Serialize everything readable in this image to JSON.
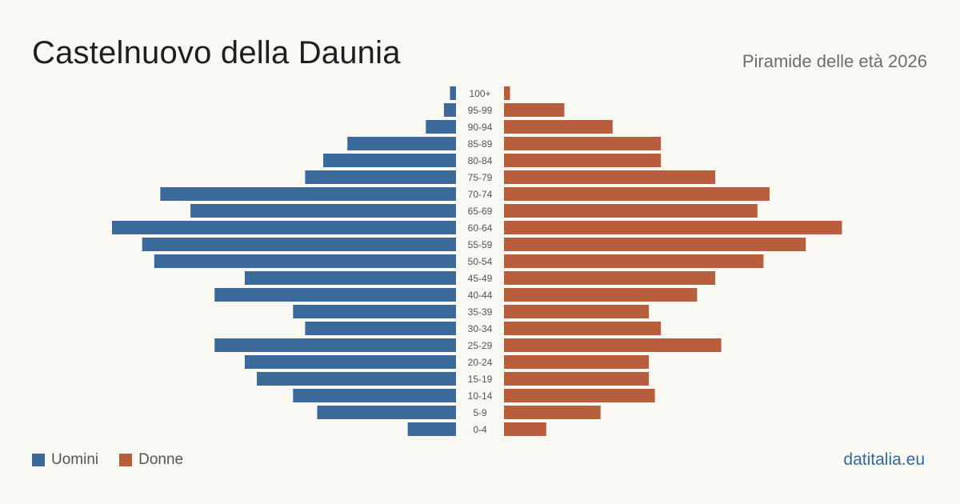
{
  "header": {
    "title": "Castelnuovo  della Daunia",
    "subtitle": "Piramide delle età 2026"
  },
  "footer": {
    "brand": "datitalia.eu"
  },
  "legend": [
    {
      "label": "Uomini",
      "color": "#3b6a9a"
    },
    {
      "label": "Donne",
      "color": "#b95e3c"
    }
  ],
  "chart_data": {
    "type": "bar",
    "orientation": "horizontal-pyramid",
    "categories": [
      "100+",
      "95-99",
      "90-94",
      "85-89",
      "80-84",
      "75-79",
      "70-74",
      "65-69",
      "60-64",
      "55-59",
      "50-54",
      "45-49",
      "40-44",
      "35-39",
      "30-34",
      "25-29",
      "20-24",
      "15-19",
      "10-14",
      "5-9",
      "0-4"
    ],
    "series": [
      {
        "name": "Uomini",
        "color": "#3b6a9a",
        "values": [
          1,
          2,
          5,
          18,
          22,
          25,
          49,
          44,
          57,
          52,
          50,
          35,
          40,
          27,
          25,
          40,
          35,
          33,
          27,
          23,
          8
        ]
      },
      {
        "name": "Donne",
        "color": "#b95e3c",
        "values": [
          1,
          10,
          18,
          26,
          26,
          35,
          44,
          42,
          56,
          50,
          43,
          35,
          32,
          24,
          26,
          36,
          24,
          24,
          25,
          16,
          7
        ]
      }
    ],
    "xlim": [
      0,
      57
    ],
    "grid": false,
    "legend_position": "bottom-left"
  }
}
